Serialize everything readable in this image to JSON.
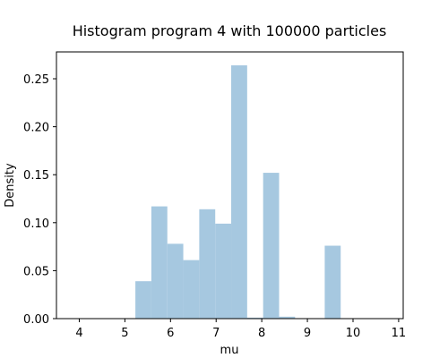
{
  "chart_data": {
    "type": "bar",
    "title": "Histogram program 4 with 100000 particles",
    "xlabel": "mu",
    "ylabel": "Density",
    "xlim": [
      3.5,
      11.1
    ],
    "ylim": [
      0,
      0.278
    ],
    "xticks": [
      4,
      5,
      6,
      7,
      8,
      9,
      10,
      11
    ],
    "yticks": [
      0.0,
      0.05,
      0.1,
      0.15,
      0.2,
      0.25
    ],
    "ytick_labels": [
      "0.00",
      "0.05",
      "0.10",
      "0.15",
      "0.20",
      "0.25"
    ],
    "grid": false,
    "bar_color": "#a6c8e0",
    "bins": [
      {
        "x0": 5.23,
        "x1": 5.58,
        "value": 0.039
      },
      {
        "x0": 5.58,
        "x1": 5.93,
        "value": 0.117
      },
      {
        "x0": 5.93,
        "x1": 6.28,
        "value": 0.078
      },
      {
        "x0": 6.28,
        "x1": 6.63,
        "value": 0.061
      },
      {
        "x0": 6.63,
        "x1": 6.98,
        "value": 0.114
      },
      {
        "x0": 6.98,
        "x1": 7.33,
        "value": 0.099
      },
      {
        "x0": 7.33,
        "x1": 7.68,
        "value": 0.264
      },
      {
        "x0": 7.68,
        "x1": 8.03,
        "value": 0.001
      },
      {
        "x0": 8.03,
        "x1": 8.38,
        "value": 0.152
      },
      {
        "x0": 8.38,
        "x1": 8.73,
        "value": 0.002
      },
      {
        "x0": 9.38,
        "x1": 9.73,
        "value": 0.076
      }
    ]
  }
}
